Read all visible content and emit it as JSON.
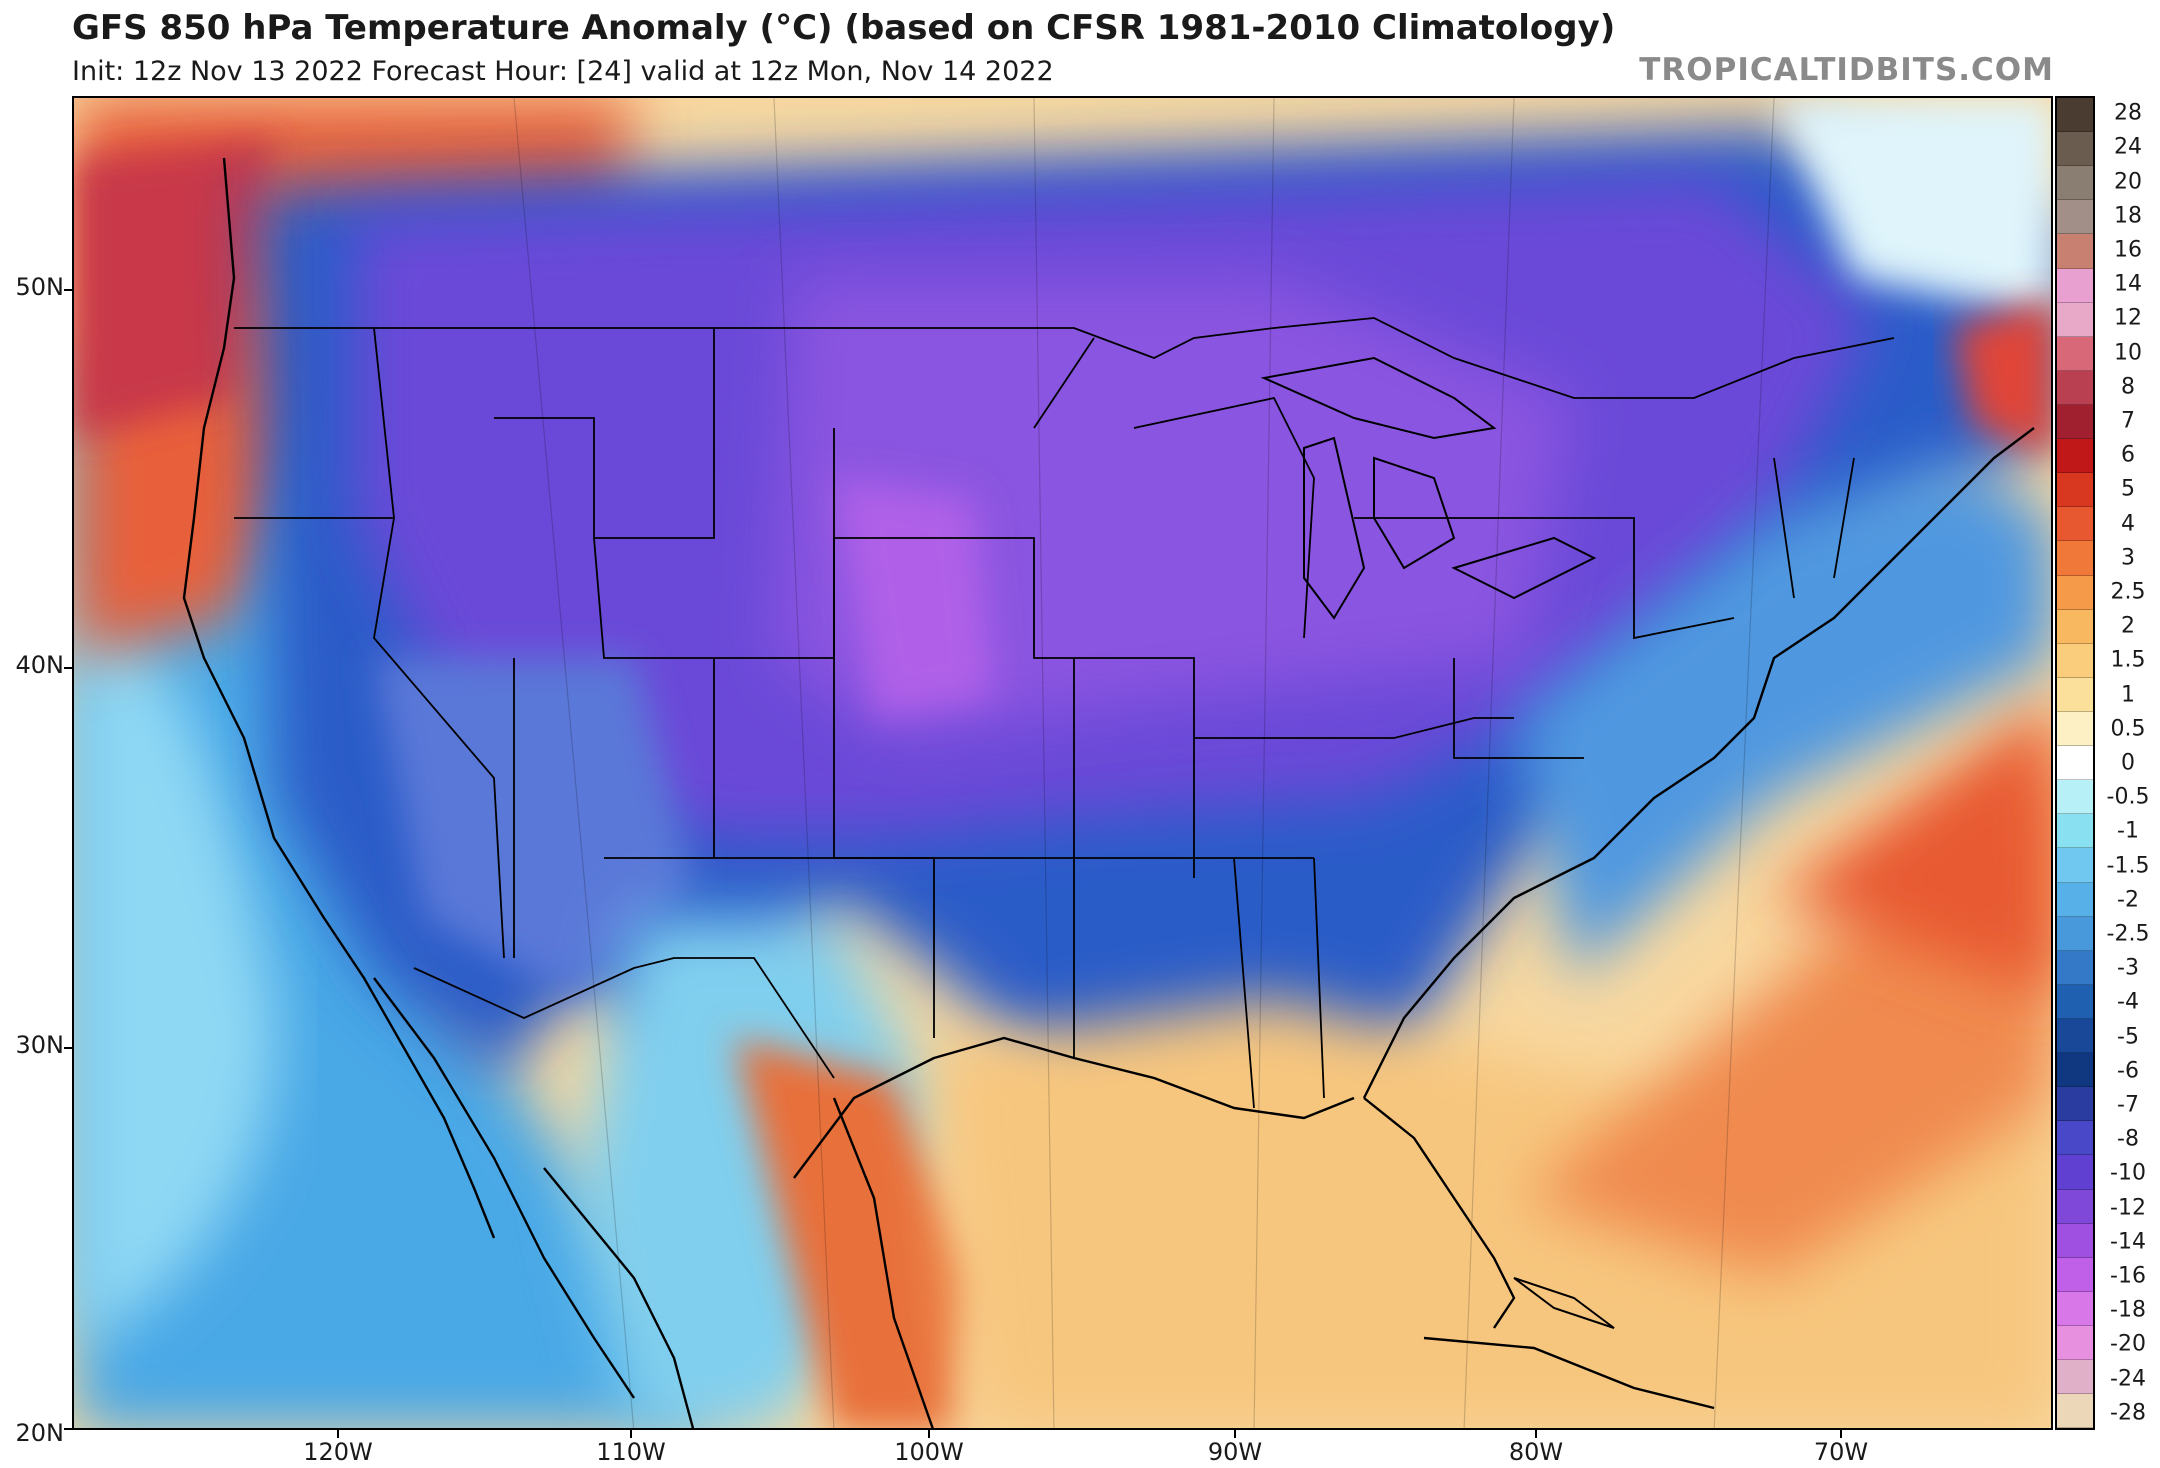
{
  "header": {
    "title": "GFS 850 hPa Temperature Anomaly (°C) (based on CFSR 1981-2010 Climatology)",
    "subtitle": "Init: 12z Nov 13 2022   Forecast Hour: [24]   valid at 12z Mon, Nov 14 2022",
    "brand": "TROPICALTIDBITS.COM"
  },
  "map": {
    "lat_labels": [
      "50N",
      "40N",
      "30N",
      "20N"
    ],
    "lon_labels": [
      "120W",
      "110W",
      "100W",
      "90W",
      "80W",
      "70W"
    ]
  },
  "colorbar": {
    "labels": [
      "28",
      "24",
      "20",
      "18",
      "16",
      "14",
      "12",
      "10",
      "8",
      "7",
      "6",
      "5",
      "4",
      "3",
      "2.5",
      "2",
      "1.5",
      "1",
      "0.5",
      "0",
      "-0.5",
      "-1",
      "-1.5",
      "-2",
      "-2.5",
      "-3",
      "-4",
      "-5",
      "-6",
      "-7",
      "-8",
      "-10",
      "-12",
      "-14",
      "-16",
      "-18",
      "-20",
      "-24",
      "-28"
    ],
    "colors": [
      "#4a3c30",
      "#6a5c4e",
      "#8a7d72",
      "#a29088",
      "#c88070",
      "#e8a0d0",
      "#e8a8c8",
      "#d86878",
      "#b84050",
      "#a02030",
      "#c01818",
      "#d83820",
      "#e85830",
      "#f07838",
      "#f49a48",
      "#f7b860",
      "#f9cd7c",
      "#fbe09c",
      "#fdf0c4",
      "#ffffff",
      "#b8f0f8",
      "#88e0f0",
      "#70c8f0",
      "#58b0e8",
      "#4898dc",
      "#3478c8",
      "#2060b0",
      "#1a4898",
      "#103880",
      "#2a3ca0",
      "#4848c8",
      "#6040d0",
      "#8048d8",
      "#a050e0",
      "#c060e8",
      "#d878e8",
      "#e890e0",
      "#e0b0c8",
      "#ecd8b8"
    ]
  }
}
